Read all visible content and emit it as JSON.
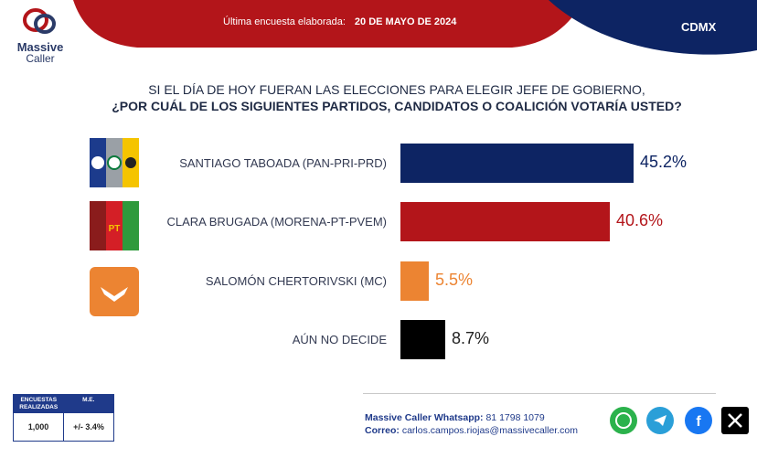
{
  "banner": {
    "label": "Última encuesta elaborada:",
    "date": "20 DE MAYO DE 2024",
    "region": "CDMX"
  },
  "logo": {
    "line1": "Massive",
    "line2": "Caller"
  },
  "question": {
    "line1": "SI EL DÍA DE HOY FUERAN LAS ELECCIONES PARA ELEGIR JEFE DE GOBIERNO,",
    "line2": "¿POR CUÁL DE LOS SIGUIENTES PARTIDOS, CANDIDATOS O COALICIÓN VOTARÍA USTED?"
  },
  "colors": {
    "navy": "#0d2463",
    "red": "#b3151a",
    "orange": "#ec8432",
    "black": "#000000"
  },
  "chart_data": {
    "type": "bar",
    "orientation": "horizontal",
    "categories": [
      "SANTIAGO TABOADA (PAN-PRI-PRD)",
      "CLARA BRUGADA (MORENA-PT-PVEM)",
      "SALOMÓN CHERTORIVSKI (MC)",
      "AÚN NO DECIDE"
    ],
    "values": [
      45.2,
      40.6,
      5.5,
      8.7
    ],
    "value_labels": [
      "45.2%",
      "40.6%",
      "5.5%",
      "8.7%"
    ],
    "bar_colors": [
      "#0d2463",
      "#b3151a",
      "#ec8432",
      "#000000"
    ],
    "value_colors": [
      "#0d2463",
      "#b3151a",
      "#ec8432",
      "#222222"
    ],
    "xlim": [
      0,
      100
    ]
  },
  "party_logos": [
    [
      "PAN",
      "PRI",
      "PRD"
    ],
    [
      "MORENA",
      "PT",
      "VERDE"
    ],
    [
      "MOVIMIENTO CIUDADANO"
    ]
  ],
  "ficha": {
    "col1_header": "ENCUESTAS REALIZADAS",
    "col2_header": "M.E.",
    "col1_value": "1,000",
    "col2_value": "+/- 3.4%"
  },
  "contact": {
    "whatsapp_label": "Massive Caller Whatsapp:",
    "whatsapp": "81 1798 1079",
    "email_label": "Correo:",
    "email": "carlos.campos.riojas@massivecaller.com"
  },
  "social": [
    "whatsapp-icon",
    "telegram-icon",
    "facebook-icon",
    "x-icon"
  ]
}
